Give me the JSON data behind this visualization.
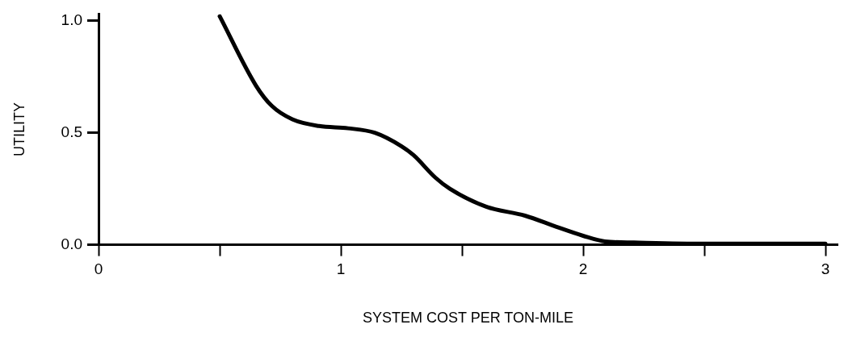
{
  "chart_data": {
    "type": "line",
    "xlabel": "SYSTEM COST PER TON-MILE",
    "ylabel": "UTILITY",
    "x": [
      0.5,
      0.65,
      0.715,
      0.8,
      0.91,
      1.03,
      1.14,
      1.25,
      1.3,
      1.39,
      1.45,
      1.6,
      1.76,
      1.89,
      2.0,
      2.09,
      2.21,
      2.5,
      3.0
    ],
    "series": [
      {
        "color": "#000000",
        "values": [
          1.02,
          0.71,
          0.62,
          0.56,
          0.53,
          0.52,
          0.5,
          0.44,
          0.4,
          0.3,
          0.25,
          0.17,
          0.13,
          0.08,
          0.04,
          0.015,
          0.01,
          0.005,
          0.005
        ]
      }
    ],
    "xlim": [
      0,
      3.05
    ],
    "xticks": [
      0,
      {
        "value": 0.5,
        "label": null
      },
      1,
      {
        "value": 1.5,
        "label": null
      },
      2,
      {
        "value": 2.5,
        "label": null
      },
      3
    ],
    "ylim": [
      0,
      1.03
    ],
    "yticks": [
      {
        "value": 0,
        "label": "0.0"
      },
      0.5,
      {
        "value": 1,
        "label": "1.0"
      }
    ],
    "grid": false,
    "legend": false,
    "marker": "none",
    "line_style": "solid"
  }
}
